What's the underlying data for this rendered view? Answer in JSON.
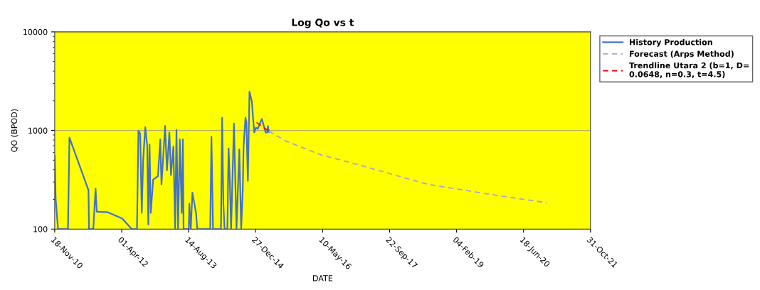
{
  "chart_data": {
    "type": "line",
    "title": "Log Qo vs t",
    "xlabel": "DATE",
    "ylabel": "QO (BPOD)",
    "log": "y",
    "legend": "right",
    "ref_lines": [
      {
        "axis": "y",
        "value": 1000,
        "color": "#b5b560"
      }
    ],
    "xlim": [
      "2010-11-18",
      "2021-10-31"
    ],
    "ylim": [
      100,
      10000
    ],
    "yticks": [
      100,
      1000,
      10000
    ],
    "xticks": [
      {
        "value": "2010-11-18",
        "label": "18-Nov-10"
      },
      {
        "value": "2012-04-01",
        "label": "01-Apr-12"
      },
      {
        "value": "2013-08-14",
        "label": "14-Aug-13"
      },
      {
        "value": "2014-12-27",
        "label": "27-Dec-14"
      },
      {
        "value": "2016-05-10",
        "label": "10-May-16"
      },
      {
        "value": "2017-09-22",
        "label": "22-Sep-17"
      },
      {
        "value": "2019-02-04",
        "label": "04-Feb-19"
      },
      {
        "value": "2020-06-18",
        "label": "18-Jun-20"
      },
      {
        "value": "2021-10-31",
        "label": "31-Oct-21"
      }
    ],
    "series": [
      {
        "name": "History Production",
        "color": "#4472c4",
        "line_style": "solid",
        "x": [
          "2010-11-18",
          "2010-11-25",
          "2010-12-13",
          "2011-02-25",
          "2011-03-08",
          "2011-07-28",
          "2011-08-01",
          "2011-09-02",
          "2011-09-19",
          "2011-09-28",
          "2011-12-21",
          "2012-04-05",
          "2012-06-15",
          "2012-07-24",
          "2012-08-04",
          "2012-08-17",
          "2012-08-29",
          "2012-09-08",
          "2012-09-24",
          "2012-10-09",
          "2012-10-17",
          "2012-10-26",
          "2012-11-04",
          "2012-11-22",
          "2012-12-28",
          "2013-01-14",
          "2013-01-23",
          "2013-02-01",
          "2013-02-19",
          "2013-03-05",
          "2013-03-23",
          "2013-04-04",
          "2013-04-22",
          "2013-05-05",
          "2013-05-15",
          "2013-05-27",
          "2013-06-09",
          "2013-06-23",
          "2013-07-02",
          "2013-07-07",
          "2013-08-15",
          "2013-08-19",
          "2013-08-30",
          "2013-09-11",
          "2013-10-08",
          "2013-10-17",
          "2014-01-22",
          "2014-01-31",
          "2014-02-12",
          "2014-04-12",
          "2014-04-21",
          "2014-04-30",
          "2014-05-09",
          "2014-05-30",
          "2014-06-08",
          "2014-06-16",
          "2014-06-27",
          "2014-07-18",
          "2014-08-06",
          "2014-08-18",
          "2014-08-27",
          "2014-09-10",
          "2014-09-22",
          "2014-09-28",
          "2014-10-12",
          "2014-10-19",
          "2014-10-30",
          "2014-11-11",
          "2014-11-29",
          "2014-12-08",
          "2014-12-17",
          "2014-12-29",
          "2015-01-12",
          "2015-02-11",
          "2015-03-12",
          "2015-03-24",
          "2015-03-29",
          "2015-04-05"
        ],
        "values": [
          551,
          204,
          100,
          100,
          848,
          248,
          100,
          100,
          257,
          150,
          148,
          128,
          100,
          100,
          995,
          930,
          146,
          493,
          1082,
          687,
          111,
          724,
          146,
          317,
          344,
          811,
          284,
          442,
          1110,
          395,
          955,
          354,
          687,
          100,
          1012,
          100,
          811,
          146,
          811,
          100,
          100,
          182,
          100,
          234,
          146,
          100,
          100,
          865,
          100,
          100,
          1346,
          182,
          100,
          100,
          658,
          354,
          100,
          1175,
          100,
          284,
          643,
          100,
          254,
          687,
          1346,
          1227,
          308,
          2474,
          1963,
          1320,
          955,
          1069,
          1040,
          1309,
          955,
          955,
          1110,
          968
        ]
      },
      {
        "name": "Forecast (Arps Method)",
        "color": "#a6a6d2",
        "line_style": "dashed",
        "x": [
          "2015-04-05",
          "2015-08-04",
          "2016-04-27",
          "2017-01-18",
          "2018-07-05",
          "2019-12-19",
          "2020-12-10"
        ],
        "values": [
          985,
          789,
          566,
          455,
          284,
          218,
          185
        ]
      },
      {
        "name": "Trendline Utara 2 (b=1, D= 0.0648, n=0.3, t=4.5)",
        "color": "#ff0000",
        "line_style": "dashed",
        "x": [
          "2015-01-03",
          "2015-04-05"
        ],
        "values": [
          1205,
          985
        ]
      }
    ]
  }
}
